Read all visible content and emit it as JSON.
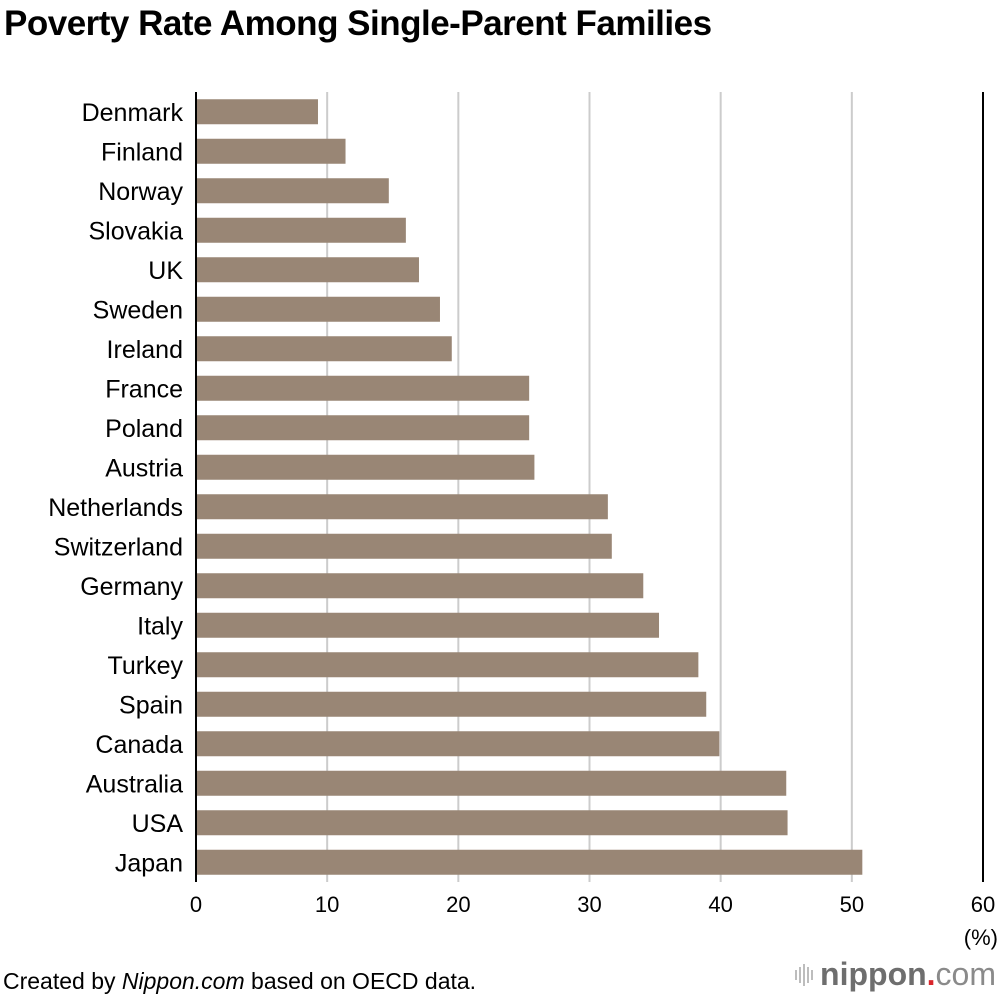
{
  "chart_data": {
    "type": "bar",
    "orientation": "horizontal",
    "title": "Poverty Rate Among Single-Parent Families",
    "xlabel": "(%)",
    "ylabel": "",
    "categories": [
      "Denmark",
      "Finland",
      "Norway",
      "Slovakia",
      "UK",
      "Sweden",
      "Ireland",
      "France",
      "Poland",
      "Austria",
      "Netherlands",
      "Switzerland",
      "Germany",
      "Italy",
      "Turkey",
      "Spain",
      "Canada",
      "Australia",
      "USA",
      "Japan"
    ],
    "values": [
      9.3,
      11.4,
      14.7,
      16.0,
      17.0,
      18.6,
      19.5,
      25.4,
      25.4,
      25.8,
      31.4,
      31.7,
      34.1,
      35.3,
      38.3,
      38.9,
      39.9,
      45.0,
      45.1,
      50.8
    ],
    "xlim": [
      0,
      60
    ],
    "xticks": [
      0,
      10,
      20,
      30,
      40,
      50,
      60
    ],
    "grid": true,
    "bar_color": "#998675",
    "grid_color": "#cccccc"
  },
  "footer": {
    "prefix": "Created by ",
    "source_italic": "Nippon.com",
    "suffix": " based on OECD data."
  },
  "logo": {
    "part1": "nippon",
    "dot": ".",
    "part2": "com"
  }
}
